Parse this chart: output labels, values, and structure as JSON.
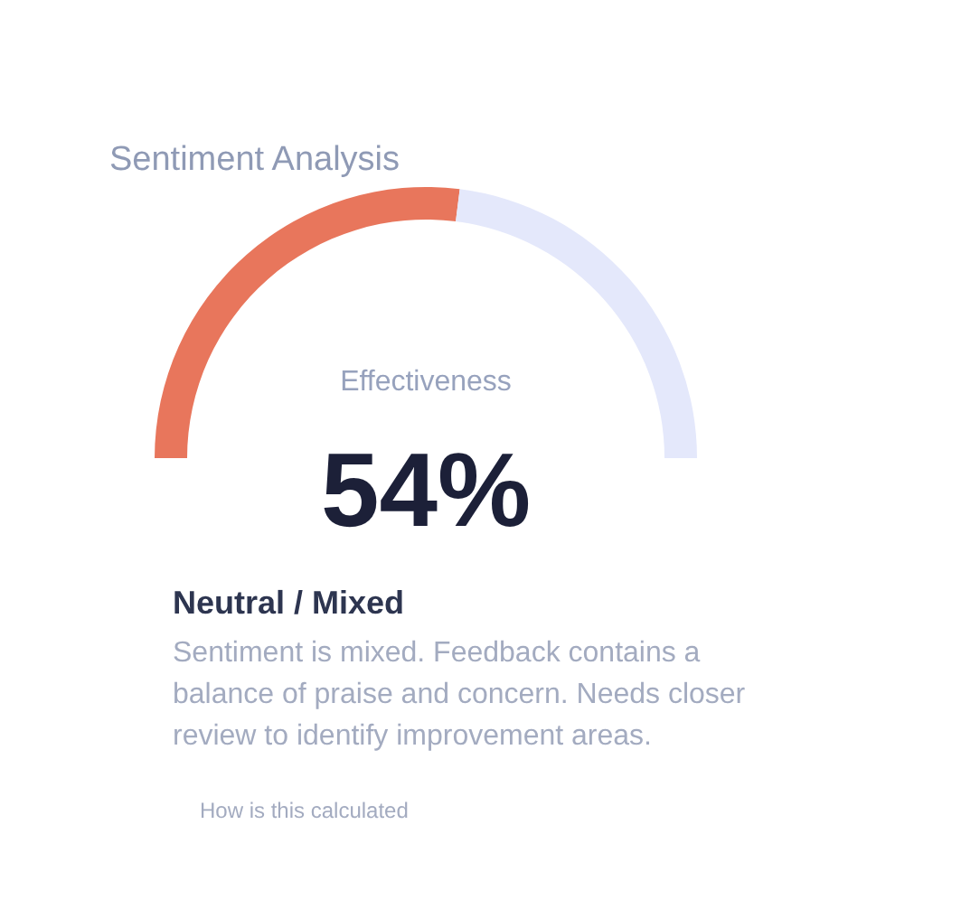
{
  "chart_data": {
    "type": "donut",
    "title": "Sentiment Analysis",
    "categories": [
      null,
      null
    ],
    "values": [
      54,
      46
    ],
    "colors": [
      "#e8765c",
      "#e4e8fb"
    ],
    "annotations": [
      "54%",
      "Effectiveness",
      "Neutral / Mixed",
      "Sentiment is mixed. Feedback contains a balance of praise and concern. Needs closer review to identify improvement areas.",
      "How is this calculated"
    ]
  }
}
